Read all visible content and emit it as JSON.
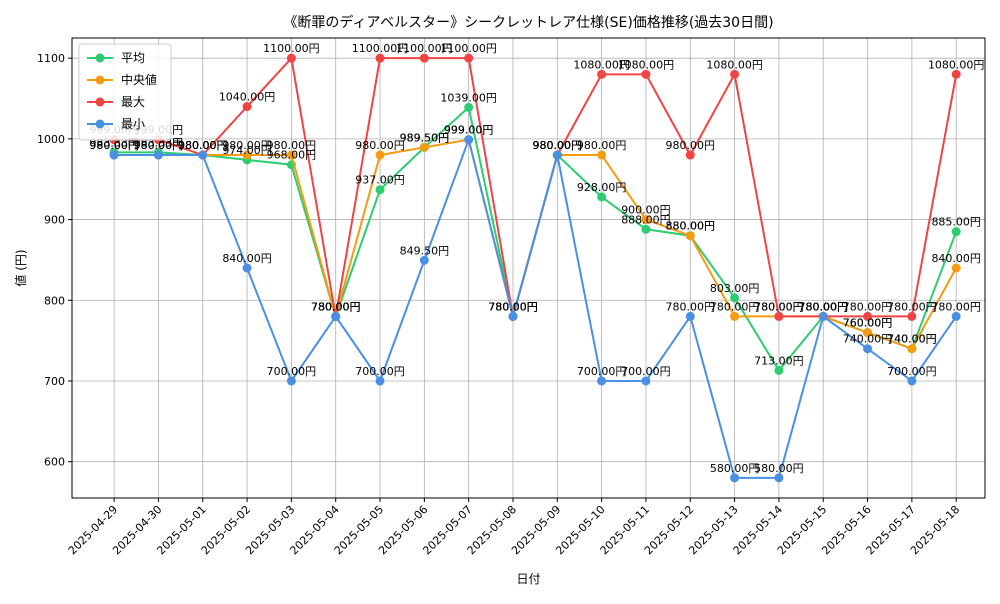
{
  "chart_data": {
    "type": "line",
    "title": "《断罪のディアベルスター》シークレットレア仕様(SE)価格推移(過去30日間)",
    "xlabel": "日付",
    "ylabel": "値 (円)",
    "ylim": [
      555,
      1125
    ],
    "yticks": [
      600,
      700,
      800,
      900,
      1000,
      1100
    ],
    "grid": true,
    "legend_position": "top-left",
    "value_suffix": "円",
    "categories": [
      "2025-04-29",
      "2025-04-30",
      "2025-05-01",
      "2025-05-02",
      "2025-05-03",
      "2025-05-04",
      "2025-05-05",
      "2025-05-06",
      "2025-05-07",
      "2025-05-08",
      "2025-05-09",
      "2025-05-10",
      "2025-05-11",
      "2025-05-12",
      "2025-05-13",
      "2025-05-14",
      "2025-05-15",
      "2025-05-16",
      "2025-05-17",
      "2025-05-18"
    ],
    "series": [
      {
        "name": "平均",
        "color": "#2ecc71",
        "values": [
          983.33,
          983.33,
          980,
          974,
          968,
          780,
          937,
          989.5,
          1039,
          780,
          980,
          928,
          888,
          880,
          803,
          713,
          780,
          760,
          740,
          885
        ]
      },
      {
        "name": "中央値",
        "color": "#f39c12",
        "values": [
          980,
          980,
          980,
          980,
          980,
          780,
          980,
          989.5,
          999,
          780,
          980,
          980,
          900,
          880,
          780,
          780,
          780,
          760,
          740,
          840
        ]
      },
      {
        "name": "最大",
        "color": "#ef4444",
        "values": [
          999,
          999,
          980,
          1040,
          1100,
          780,
          1100,
          1100,
          1100,
          780,
          980,
          1080,
          1080,
          980,
          1080,
          780,
          780,
          780,
          780,
          1080
        ]
      },
      {
        "name": "最小",
        "color": "#4a90e2",
        "values": [
          980,
          980,
          980,
          840,
          700,
          780,
          700,
          849.5,
          999,
          780,
          980,
          700,
          700,
          780,
          580,
          580,
          780,
          740,
          700,
          780
        ]
      }
    ]
  }
}
